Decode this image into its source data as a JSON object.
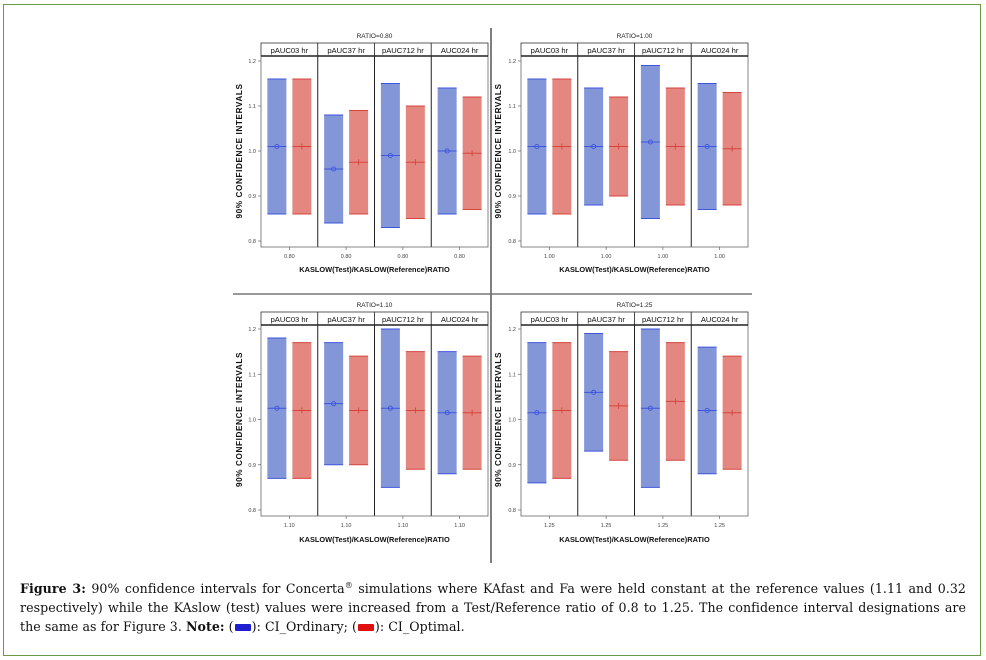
{
  "figure": {
    "caption": {
      "label": "Figure 3:",
      "text_1": " 90% confidence intervals for Concerta",
      "reg_mark": "®",
      "text_2": " simulations where KAfast and Fa were held constant at the reference values (1.11 and 0.32 respectively) while the KAslow (test) values were increased from a Test/Reference ratio of 0.8 to 1.25. The confidence interval designations are the same as for Figure 3. ",
      "note_label": "Note:",
      "legend_open_1": " (",
      "legend_label_1": "): CI_Ordinary; (",
      "legend_label_2": "): CI_Optimal."
    },
    "colors": {
      "ci_ordinary_fill": "#7c90d6",
      "ci_ordinary_line": "#3f55dd",
      "ci_optimal_fill": "#e4817a",
      "ci_optimal_line": "#d4463d",
      "legend_blue": "#1f1fd0",
      "legend_red": "#e01010",
      "frame": "#6a9a46"
    }
  },
  "chart_data": [
    {
      "type": "interval",
      "title": "RATIO=0.80",
      "xlabel": "KASLOW(Test)/KASLOW(Reference)RATIO",
      "ylabel": "90% CONFIDENCE INTERVALS",
      "ylim": [
        0.8,
        1.2
      ],
      "yticks": [
        "0.8",
        "0.9",
        "1.0",
        "1.1",
        "1.2"
      ],
      "facets": [
        "pAUC03 hr",
        "pAUC37 hr",
        "pAUC712 hr",
        "AUC024 hr"
      ],
      "xtick": "0.80",
      "series": [
        {
          "name": "CI_Ordinary",
          "lower": [
            0.86,
            0.84,
            0.83,
            0.86
          ],
          "point": [
            1.01,
            0.96,
            0.99,
            1.0
          ],
          "upper": [
            1.16,
            1.08,
            1.15,
            1.14
          ]
        },
        {
          "name": "CI_Optimal",
          "lower": [
            0.86,
            0.86,
            0.85,
            0.87
          ],
          "point": [
            1.01,
            0.975,
            0.975,
            0.995
          ],
          "upper": [
            1.16,
            1.09,
            1.1,
            1.12
          ]
        }
      ]
    },
    {
      "type": "interval",
      "title": "RATIO=1.00",
      "xlabel": "KASLOW(Test)/KASLOW(Reference)RATIO",
      "ylabel": "90% CONFIDENCE INTERVALS",
      "ylim": [
        0.8,
        1.2
      ],
      "yticks": [
        "0.8",
        "0.9",
        "1.0",
        "1.1",
        "1.2"
      ],
      "facets": [
        "pAUC03 hr",
        "pAUC37 hr",
        "pAUC712 hr",
        "AUC024 hr"
      ],
      "xtick": "1.00",
      "series": [
        {
          "name": "CI_Ordinary",
          "lower": [
            0.86,
            0.88,
            0.85,
            0.87
          ],
          "point": [
            1.01,
            1.01,
            1.02,
            1.01
          ],
          "upper": [
            1.16,
            1.14,
            1.19,
            1.15
          ]
        },
        {
          "name": "CI_Optimal",
          "lower": [
            0.86,
            0.9,
            0.88,
            0.88
          ],
          "point": [
            1.01,
            1.01,
            1.01,
            1.005
          ],
          "upper": [
            1.16,
            1.12,
            1.14,
            1.13
          ]
        }
      ]
    },
    {
      "type": "interval",
      "title": "RATIO=1.10",
      "xlabel": "KASLOW(Test)/KASLOW(Reference)RATIO",
      "ylabel": "90% CONFIDENCE INTERVALS",
      "ylim": [
        0.8,
        1.2
      ],
      "yticks": [
        "0.8",
        "0.9",
        "1.0",
        "1.1",
        "1.2"
      ],
      "facets": [
        "pAUC03 hr",
        "pAUC37 hr",
        "pAUC712 hr",
        "AUC024 hr"
      ],
      "xtick": "1.10",
      "series": [
        {
          "name": "CI_Ordinary",
          "lower": [
            0.87,
            0.9,
            0.85,
            0.88
          ],
          "point": [
            1.025,
            1.035,
            1.025,
            1.015
          ],
          "upper": [
            1.18,
            1.17,
            1.2,
            1.15
          ]
        },
        {
          "name": "CI_Optimal",
          "lower": [
            0.87,
            0.9,
            0.89,
            0.89
          ],
          "point": [
            1.02,
            1.02,
            1.02,
            1.015
          ],
          "upper": [
            1.17,
            1.14,
            1.15,
            1.14
          ]
        }
      ]
    },
    {
      "type": "interval",
      "title": "RATIO=1.25",
      "xlabel": "KASLOW(Test)/KASLOW(Reference)RATIO",
      "ylabel": "90% CONFIDENCE INTERVALS",
      "ylim": [
        0.8,
        1.2
      ],
      "yticks": [
        "0.8",
        "0.9",
        "1.0",
        "1.1",
        "1.2"
      ],
      "facets": [
        "pAUC03 hr",
        "pAUC37 hr",
        "pAUC712 hr",
        "AUC024 hr"
      ],
      "xtick": "1.25",
      "series": [
        {
          "name": "CI_Ordinary",
          "lower": [
            0.86,
            0.93,
            0.85,
            0.88
          ],
          "point": [
            1.015,
            1.06,
            1.025,
            1.02
          ],
          "upper": [
            1.17,
            1.19,
            1.2,
            1.16
          ]
        },
        {
          "name": "CI_Optimal",
          "lower": [
            0.87,
            0.91,
            0.91,
            0.89
          ],
          "point": [
            1.02,
            1.03,
            1.04,
            1.015
          ],
          "upper": [
            1.17,
            1.15,
            1.17,
            1.14
          ]
        }
      ]
    }
  ]
}
